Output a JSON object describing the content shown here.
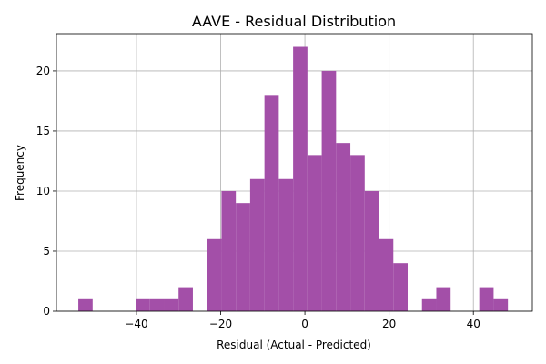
{
  "chart_data": {
    "type": "bar",
    "title": "AAVE - Residual Distribution",
    "xlabel": "Residual (Actual - Predicted)",
    "ylabel": "Frequency",
    "bin_width": 3.4,
    "bins": [
      {
        "x0": -53.8,
        "count": 1
      },
      {
        "x0": -50.4,
        "count": 0
      },
      {
        "x0": -47.0,
        "count": 0
      },
      {
        "x0": -43.6,
        "count": 0
      },
      {
        "x0": -40.2,
        "count": 1
      },
      {
        "x0": -36.8,
        "count": 1
      },
      {
        "x0": -33.4,
        "count": 1
      },
      {
        "x0": -30.0,
        "count": 2
      },
      {
        "x0": -26.6,
        "count": 0
      },
      {
        "x0": -23.2,
        "count": 6
      },
      {
        "x0": -19.8,
        "count": 10
      },
      {
        "x0": -16.4,
        "count": 9
      },
      {
        "x0": -13.0,
        "count": 11
      },
      {
        "x0": -9.6,
        "count": 18
      },
      {
        "x0": -6.2,
        "count": 11
      },
      {
        "x0": -2.8,
        "count": 22
      },
      {
        "x0": 0.6,
        "count": 13
      },
      {
        "x0": 4.0,
        "count": 20
      },
      {
        "x0": 7.4,
        "count": 14
      },
      {
        "x0": 10.8,
        "count": 13
      },
      {
        "x0": 14.2,
        "count": 10
      },
      {
        "x0": 17.6,
        "count": 6
      },
      {
        "x0": 21.0,
        "count": 4
      },
      {
        "x0": 24.4,
        "count": 0
      },
      {
        "x0": 27.8,
        "count": 1
      },
      {
        "x0": 31.2,
        "count": 2
      },
      {
        "x0": 34.6,
        "count": 0
      },
      {
        "x0": 38.0,
        "count": 0
      },
      {
        "x0": 41.4,
        "count": 2
      },
      {
        "x0": 44.8,
        "count": 1
      }
    ],
    "xlim": [
      -59,
      54
    ],
    "ylim": [
      0,
      23.1
    ],
    "xticks": [
      -40,
      -20,
      0,
      20,
      40
    ],
    "xtick_labels": [
      "−40",
      "−20",
      "0",
      "20",
      "40"
    ],
    "yticks": [
      0,
      5,
      10,
      15,
      20
    ],
    "ytick_labels": [
      "0",
      "5",
      "10",
      "15",
      "20"
    ],
    "grid": true,
    "bar_color": "#a34fa8"
  }
}
